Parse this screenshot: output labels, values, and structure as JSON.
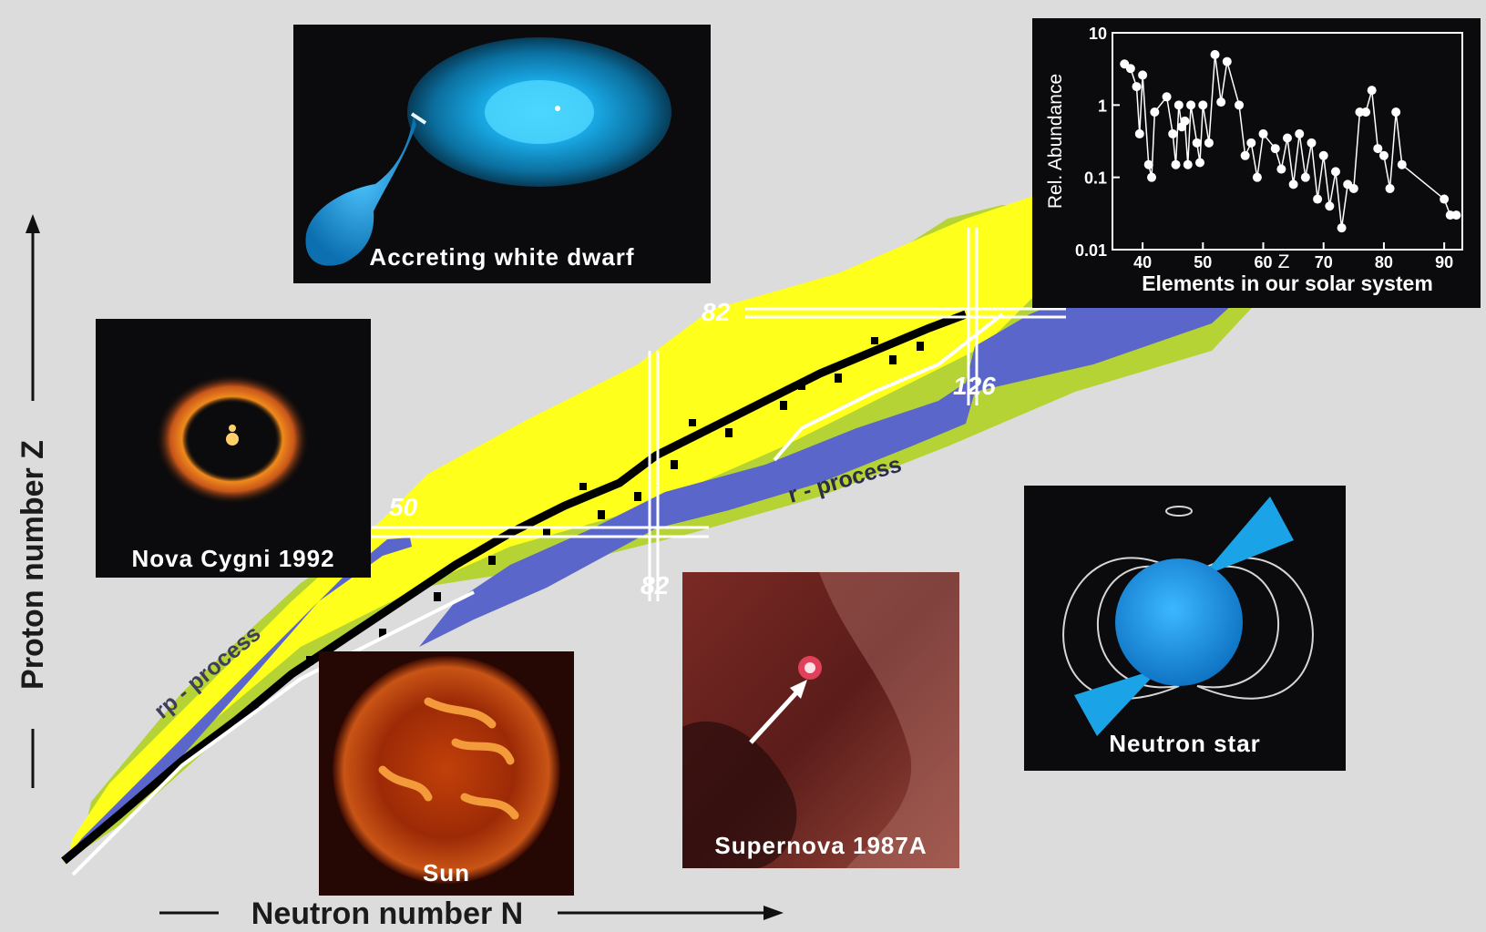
{
  "axes": {
    "y_label": "Proton number Z",
    "x_label": "Neutron number N"
  },
  "magic_numbers": {
    "z50": "50",
    "z82": "82",
    "n82": "82",
    "n126": "126"
  },
  "process_labels": {
    "rp_process": "rp - process",
    "r_process": "r - process"
  },
  "panels": {
    "accreting_white_dwarf": "Accreting  white  dwarf",
    "nova_cygni": "Nova Cygni 1992",
    "sun": "Sun",
    "supernova": "Supernova 1987A",
    "neutron_star": "Neutron  star"
  },
  "abundance_inset": {
    "ylabel": "Rel. Abundance",
    "xlabel": "Z",
    "caption": "Elements  in  our  solar system",
    "yticks": [
      "10",
      "1",
      "0.1",
      "0.01"
    ],
    "xticks": [
      "40",
      "50",
      "60",
      "70",
      "80",
      "90"
    ]
  },
  "chart_data": {
    "type": "scatter",
    "xlabel": "Z",
    "ylabel": "Rel. Abundance",
    "yscale": "log",
    "ylim": [
      0.01,
      10
    ],
    "xlim": [
      35,
      93
    ],
    "points": [
      [
        37,
        3.7
      ],
      [
        38,
        3.2
      ],
      [
        39,
        1.8
      ],
      [
        39.5,
        0.4
      ],
      [
        40,
        2.6
      ],
      [
        41,
        0.15
      ],
      [
        41.5,
        0.1
      ],
      [
        42,
        0.8
      ],
      [
        44,
        1.3
      ],
      [
        45,
        0.4
      ],
      [
        45.5,
        0.15
      ],
      [
        46,
        1.0
      ],
      [
        46.5,
        0.5
      ],
      [
        47,
        0.6
      ],
      [
        47.5,
        0.15
      ],
      [
        48,
        1.0
      ],
      [
        49,
        0.3
      ],
      [
        49.5,
        0.16
      ],
      [
        50,
        1.0
      ],
      [
        51,
        0.3
      ],
      [
        52,
        5.0
      ],
      [
        53,
        1.1
      ],
      [
        54,
        4.0
      ],
      [
        56,
        1.0
      ],
      [
        57,
        0.2
      ],
      [
        58,
        0.3
      ],
      [
        59,
        0.1
      ],
      [
        60,
        0.4
      ],
      [
        62,
        0.25
      ],
      [
        63,
        0.13
      ],
      [
        64,
        0.35
      ],
      [
        65,
        0.08
      ],
      [
        66,
        0.4
      ],
      [
        67,
        0.1
      ],
      [
        68,
        0.3
      ],
      [
        69,
        0.05
      ],
      [
        70,
        0.2
      ],
      [
        71,
        0.04
      ],
      [
        72,
        0.12
      ],
      [
        73,
        0.02
      ],
      [
        74,
        0.08
      ],
      [
        75,
        0.07
      ],
      [
        76,
        0.8
      ],
      [
        77,
        0.8
      ],
      [
        78,
        1.6
      ],
      [
        79,
        0.25
      ],
      [
        80,
        0.2
      ],
      [
        81,
        0.07
      ],
      [
        82,
        0.8
      ],
      [
        83,
        0.15
      ],
      [
        90,
        0.05
      ],
      [
        91,
        0.03
      ],
      [
        92,
        0.03
      ]
    ]
  }
}
